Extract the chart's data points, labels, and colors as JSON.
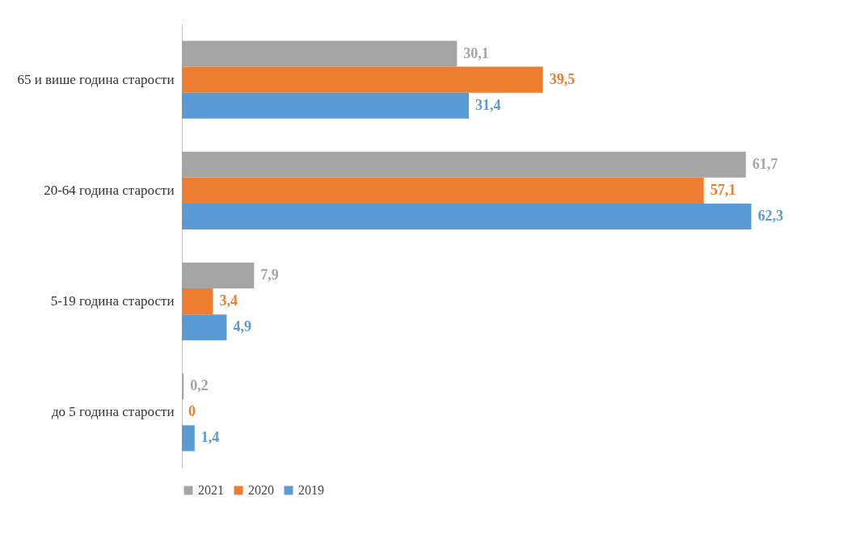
{
  "chart_data": {
    "type": "bar",
    "orientation": "horizontal",
    "categories": [
      "65 и више година старости",
      "20-64 година старости",
      "5-19 година старости",
      "до 5 година старости"
    ],
    "series": [
      {
        "name": "2021",
        "color": "#a5a5a5",
        "values": [
          30.1,
          61.7,
          7.9,
          0.2
        ],
        "value_labels": [
          "30,1",
          "61,7",
          "7,9",
          "0,2"
        ]
      },
      {
        "name": "2020",
        "color": "#ed7d31",
        "values": [
          39.5,
          57.1,
          3.4,
          0
        ],
        "value_labels": [
          "39,5",
          "57,1",
          "3,4",
          "0"
        ]
      },
      {
        "name": "2019",
        "color": "#5b9bd5",
        "values": [
          31.4,
          62.3,
          4.9,
          1.4
        ],
        "value_labels": [
          "31,4",
          "62,3",
          "4,9",
          "1,4"
        ]
      }
    ],
    "legend": "bottom",
    "grid": false
  }
}
